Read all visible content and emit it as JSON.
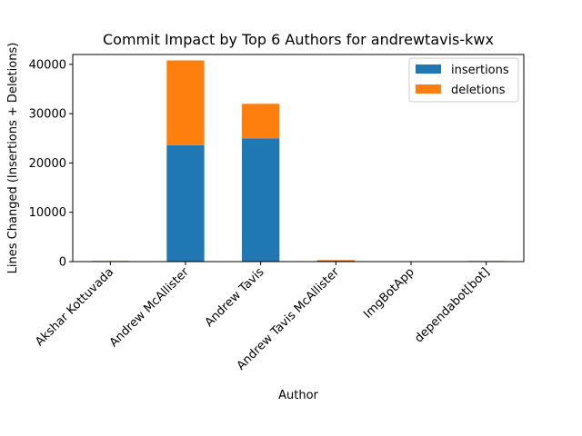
{
  "chart_data": {
    "type": "bar",
    "stacked": true,
    "title": "Commit Impact by Top 6 Authors for andrewtavis-kwx",
    "xlabel": "Author",
    "ylabel": "Lines Changed (Insertions + Deletions)",
    "categories": [
      "Akshar Kottuvada",
      "Andrew McAllister",
      "Andrew Tavis",
      "Andrew Tavis McAllister",
      "ImgBotApp",
      "dependabot[bot]"
    ],
    "series": [
      {
        "name": "insertions",
        "color": "#1f77b4",
        "values": [
          20,
          23600,
          25000,
          200,
          0,
          5
        ]
      },
      {
        "name": "deletions",
        "color": "#ff7f0e",
        "values": [
          10,
          17200,
          7000,
          100,
          0,
          5
        ]
      }
    ],
    "ylim": [
      0,
      42000
    ],
    "yticks": [
      0,
      10000,
      20000,
      30000,
      40000
    ],
    "grid": false,
    "legend_position": "top-right"
  }
}
